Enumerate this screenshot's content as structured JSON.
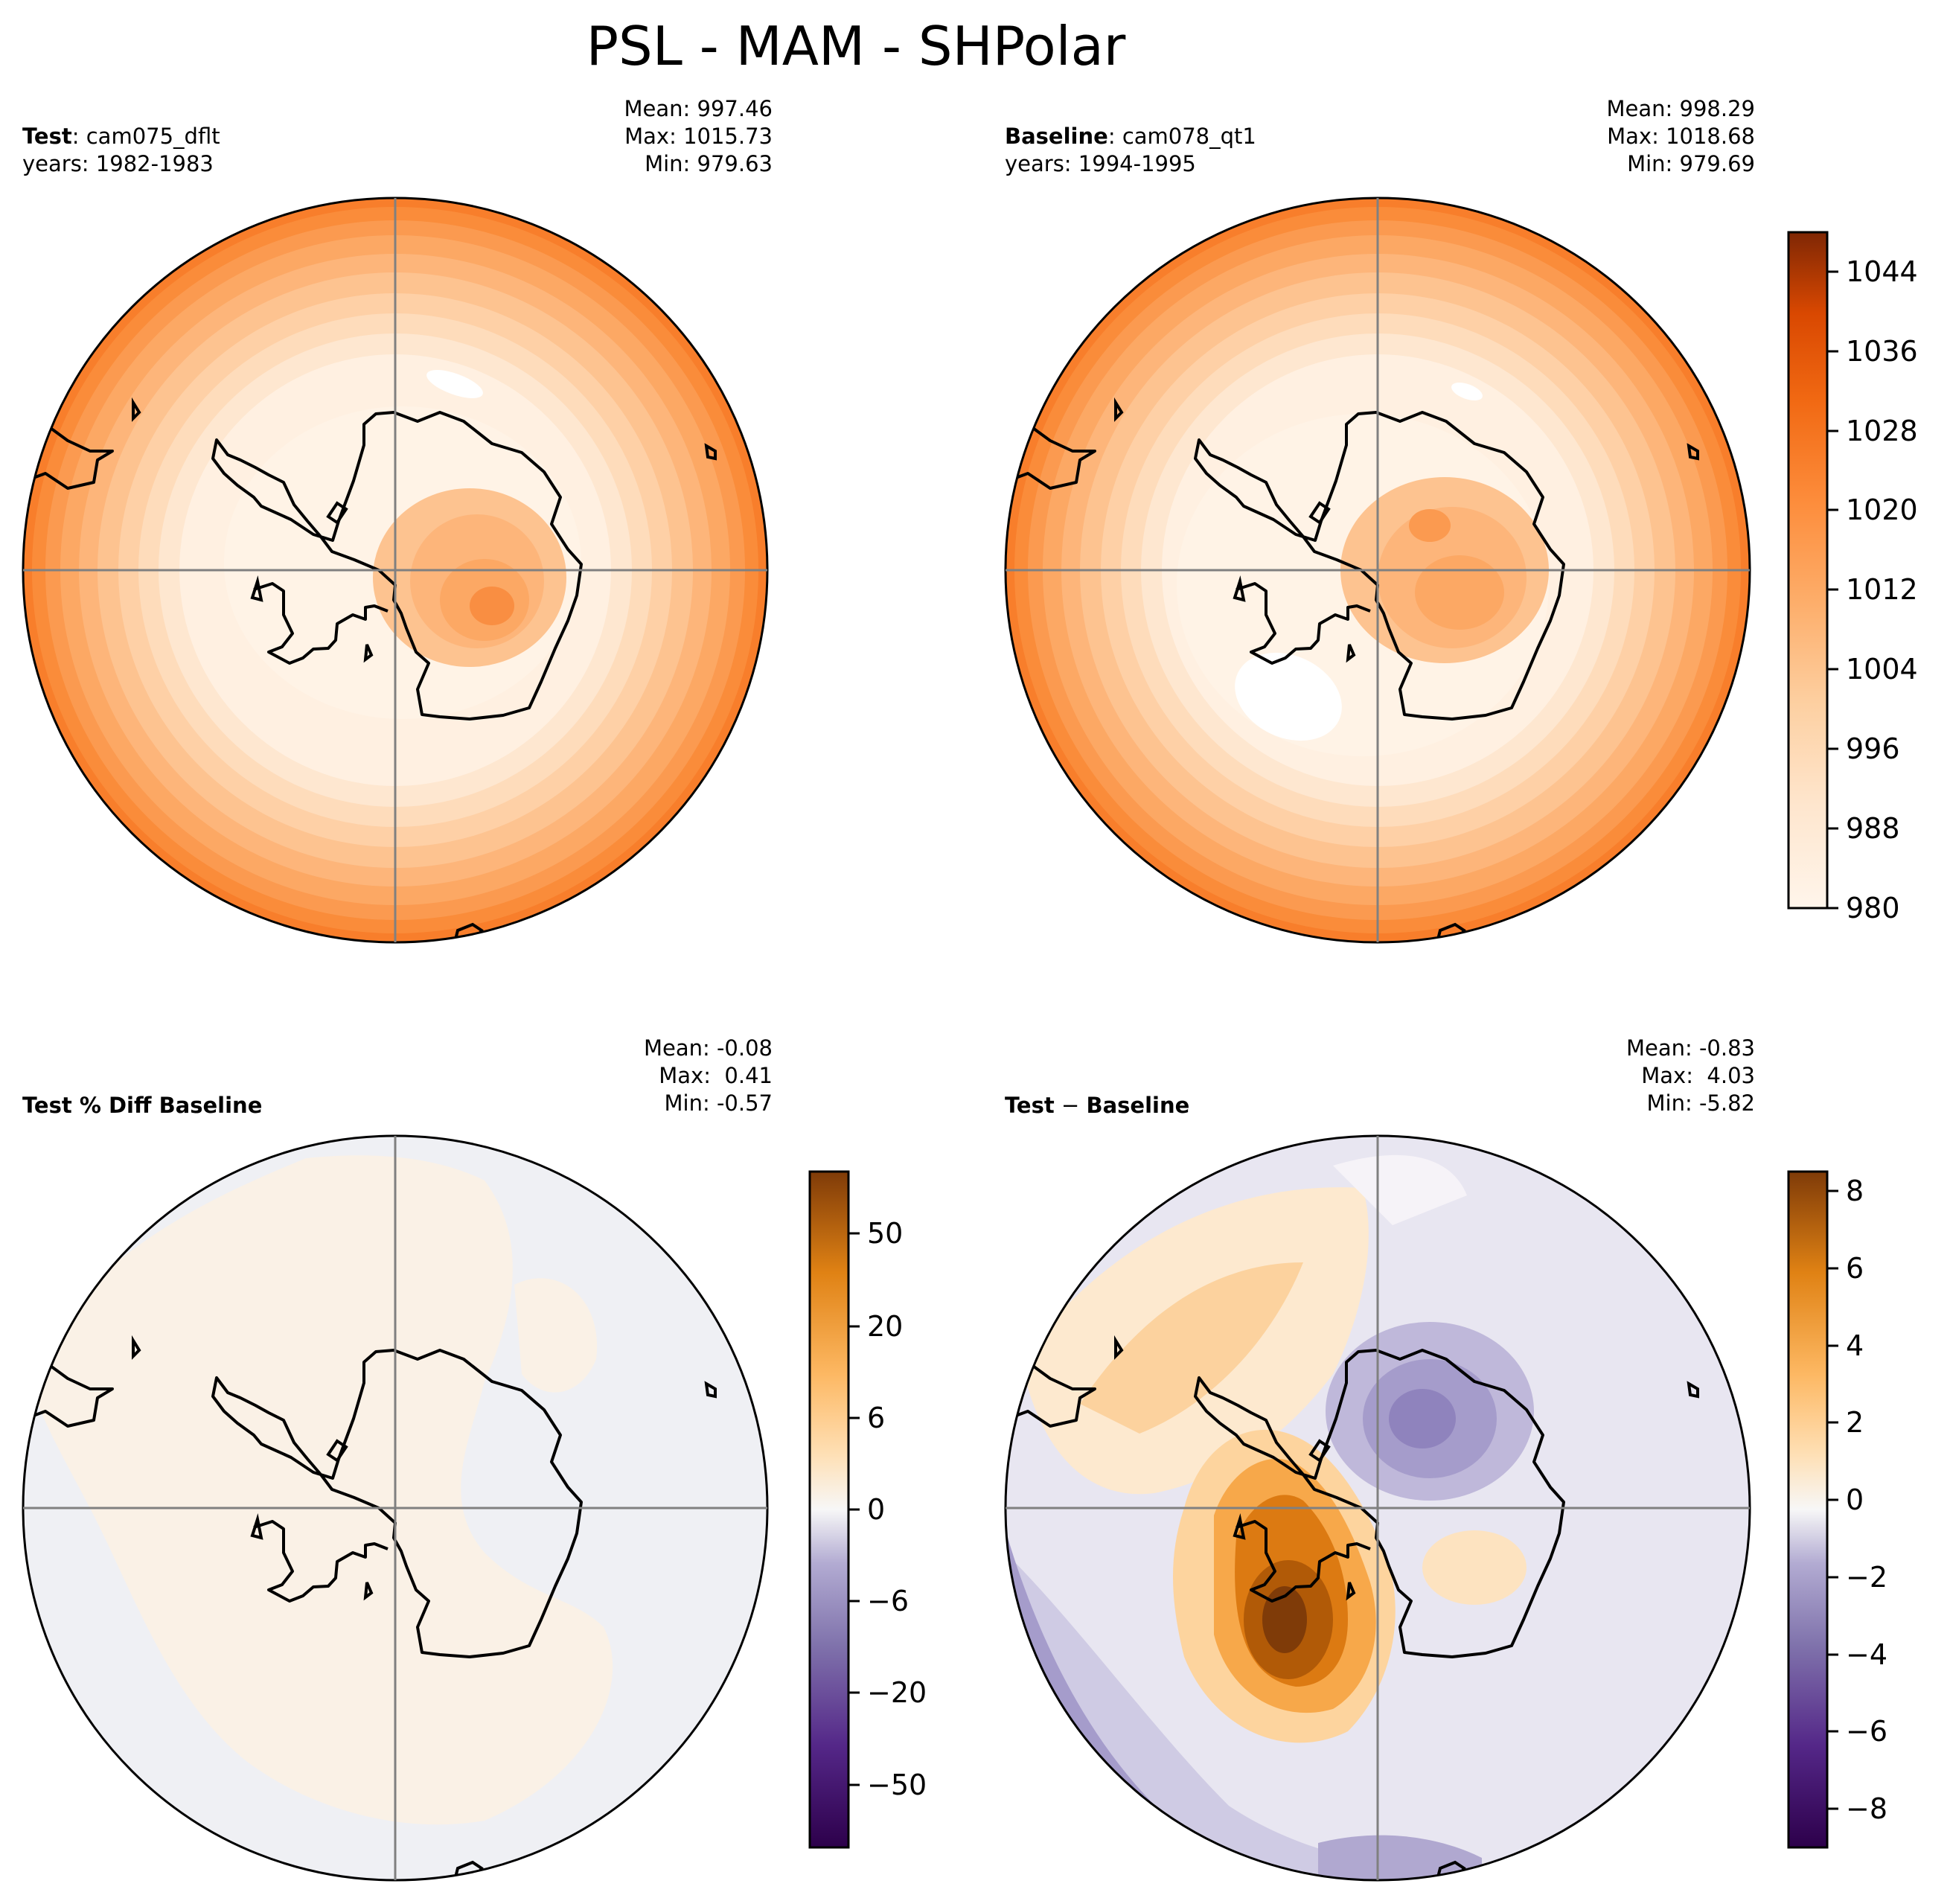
{
  "title": "PSL - MAM - SHPolar",
  "panels": {
    "test": {
      "label_bold": "Test",
      "label_sep": ": ",
      "label_rest": "cam075_dflt",
      "years": "years: 1982-1983",
      "mean": "Mean: 997.46",
      "max": "Max: 1015.73",
      "min": "Min: 979.63"
    },
    "baseline": {
      "label_bold": "Baseline",
      "label_sep": ": ",
      "label_rest": "cam078_qt1",
      "years": "years: 1994-1995",
      "mean": "Mean: 998.29",
      "max": "Max: 1018.68",
      "min": "Min: 979.69"
    },
    "pctdiff": {
      "label_bold": "Test % Diff Baseline",
      "mean": "Mean: -0.08",
      "max": "Max:  0.41",
      "min": "Min: -0.57"
    },
    "diff": {
      "label_bold": "Test",
      "label_sep": " − ",
      "label_rest": "Baseline",
      "mean": "Mean: -0.83",
      "max": "Max:  4.03",
      "min": "Min: -5.82"
    }
  },
  "colorbars": {
    "abs": {
      "ticks": [
        "1044",
        "1036",
        "1028",
        "1020",
        "1012",
        "1004",
        "996",
        "988",
        "980"
      ],
      "range": [
        980,
        1048
      ],
      "colormap": "Oranges"
    },
    "pct": {
      "ticks": [
        "50",
        "20",
        "6",
        "0",
        "−6",
        "−20",
        "−50"
      ],
      "colormap": "PuOr_r"
    },
    "diff": {
      "ticks": [
        "8",
        "6",
        "4",
        "2",
        "0",
        "−2",
        "−4",
        "−6",
        "−8"
      ],
      "range": [
        -9,
        8.5
      ],
      "colormap": "PuOr_r"
    }
  },
  "colors": {
    "gridline": "#808080",
    "coast": "#000000",
    "orange_dark": "#7f2704",
    "orange_light": "#fff5eb",
    "purple_dark": "#2d004b",
    "brown_dark": "#7f3b08"
  }
}
